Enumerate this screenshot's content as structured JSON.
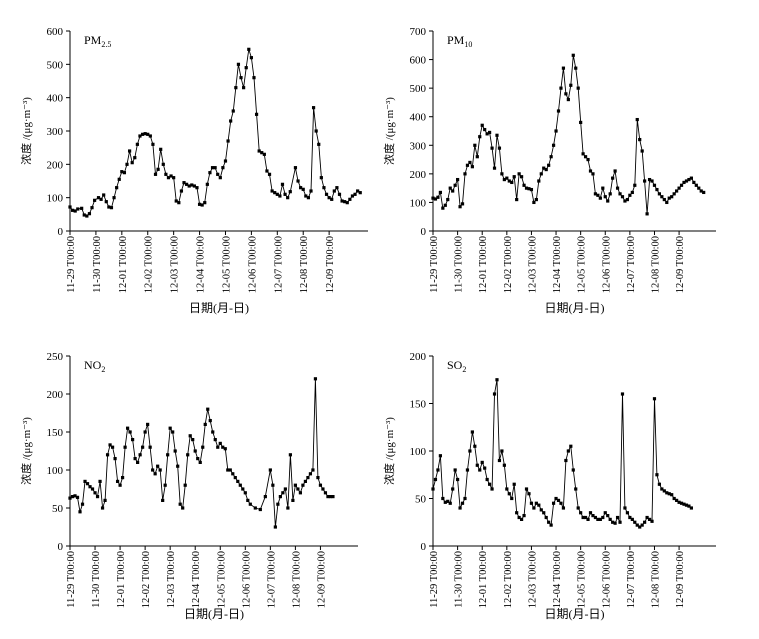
{
  "chart_data": [
    {
      "type": "line",
      "title": "PM2.5",
      "title_main": "PM",
      "title_sub": "2.5",
      "xlabel": "日期(月-日)",
      "ylabel": "浓度 /(μg·m⁻³)",
      "ylim": [
        0,
        600
      ],
      "yticks": [
        "0",
        "100",
        "200",
        "300",
        "400",
        "500",
        "600"
      ],
      "xlim": [
        0,
        11.5
      ],
      "xticks": [
        "11-29 T00:00",
        "11-30 T00:00",
        "12-01 T00:00",
        "12-02 T00:00",
        "12-03 T00:00",
        "12-04 T00:00",
        "12-05 T00:00",
        "12-06 T00:00",
        "12-07 T00:00",
        "12-08 T00:00",
        "12-09 T00:00"
      ],
      "series": [
        {
          "x": [
            0,
            0.1,
            0.2,
            0.3,
            0.45,
            0.55,
            0.65,
            0.75,
            0.85,
            0.95,
            1.1,
            1.2,
            1.3,
            1.4,
            1.5,
            1.6,
            1.7,
            1.8,
            1.9,
            2.0,
            2.1,
            2.2,
            2.3,
            2.4,
            2.5,
            2.6,
            2.7,
            2.8,
            2.9,
            3.0,
            3.1,
            3.2,
            3.3,
            3.4,
            3.5,
            3.6,
            3.7,
            3.8,
            3.9,
            4.0,
            4.1,
            4.2,
            4.3,
            4.4,
            4.5,
            4.6,
            4.7,
            4.8,
            4.9,
            5.0,
            5.1,
            5.2,
            5.3,
            5.4,
            5.5,
            5.6,
            5.7,
            5.8,
            5.9,
            6.0,
            6.1,
            6.2,
            6.3,
            6.4,
            6.5,
            6.6,
            6.7,
            6.8,
            6.9,
            7.0,
            7.1,
            7.2,
            7.3,
            7.4,
            7.5,
            7.6,
            7.7,
            7.8,
            7.9,
            8.0,
            8.1,
            8.2,
            8.3,
            8.4,
            8.5,
            8.7,
            8.8,
            8.9,
            9.0,
            9.1,
            9.2,
            9.3,
            9.4,
            9.5,
            9.6,
            9.7,
            9.8,
            9.9,
            10.0,
            10.1,
            10.2,
            10.3,
            10.4,
            10.5,
            10.6,
            10.7,
            10.8,
            10.9,
            11.0,
            11.1,
            11.2
          ],
          "y": [
            72,
            62,
            60,
            66,
            68,
            48,
            45,
            52,
            70,
            92,
            100,
            95,
            108,
            88,
            72,
            70,
            100,
            130,
            155,
            178,
            175,
            200,
            240,
            205,
            220,
            260,
            285,
            290,
            292,
            290,
            285,
            260,
            170,
            185,
            245,
            200,
            170,
            160,
            165,
            160,
            90,
            85,
            120,
            145,
            140,
            135,
            138,
            135,
            130,
            80,
            78,
            85,
            140,
            175,
            190,
            190,
            170,
            160,
            190,
            210,
            270,
            330,
            360,
            430,
            500,
            460,
            430,
            490,
            545,
            520,
            460,
            350,
            240,
            235,
            230,
            180,
            170,
            120,
            115,
            110,
            105,
            140,
            110,
            100,
            118,
            190,
            150,
            130,
            125,
            105,
            100,
            120,
            370,
            300,
            260,
            160,
            130,
            110,
            100,
            95,
            120,
            130,
            110,
            90,
            88,
            85,
            95,
            105,
            110,
            120,
            115
          ],
          "gaps": [
            7.5
          ]
        }
      ]
    },
    {
      "type": "line",
      "title": "PM10",
      "title_main": "PM",
      "title_sub": "10",
      "xlabel": "日期(月-日)",
      "ylabel": "浓度 /(μg·m⁻³)",
      "ylim": [
        0,
        700
      ],
      "yticks": [
        "0",
        "100",
        "200",
        "300",
        "400",
        "500",
        "600",
        "700"
      ],
      "xlim": [
        0,
        11.5
      ],
      "xticks": [
        "11-29 T00:00",
        "11-30 T00:00",
        "12-01 T00:00",
        "12-02 T00:00",
        "12-03 T00:00",
        "12-04 T00:00",
        "12-05 T00:00",
        "12-06 T00:00",
        "12-07 T00:00",
        "12-08 T00:00",
        "12-09 T00:00"
      ],
      "series": [
        {
          "x": [
            0,
            0.1,
            0.2,
            0.3,
            0.4,
            0.5,
            0.6,
            0.7,
            0.8,
            0.9,
            1.0,
            1.1,
            1.2,
            1.3,
            1.4,
            1.5,
            1.6,
            1.7,
            1.8,
            1.9,
            2.0,
            2.1,
            2.2,
            2.3,
            2.4,
            2.5,
            2.6,
            2.7,
            2.8,
            2.9,
            3.0,
            3.1,
            3.2,
            3.3,
            3.4,
            3.5,
            3.6,
            3.7,
            3.8,
            3.9,
            4.0,
            4.1,
            4.2,
            4.3,
            4.4,
            4.5,
            4.6,
            4.7,
            4.8,
            4.9,
            5.0,
            5.1,
            5.2,
            5.3,
            5.4,
            5.5,
            5.6,
            5.7,
            5.8,
            5.9,
            6.0,
            6.1,
            6.2,
            6.3,
            6.4,
            6.5,
            6.6,
            6.7,
            6.8,
            6.9,
            7.0,
            7.1,
            7.2,
            7.3,
            7.4,
            7.5,
            7.6,
            7.7,
            7.8,
            7.9,
            8.0,
            8.1,
            8.2,
            8.3,
            8.4,
            8.5,
            8.6,
            8.7,
            8.8,
            8.9,
            9.0,
            9.1,
            9.2,
            9.3,
            9.4,
            9.5,
            9.6,
            9.7,
            9.8,
            9.9,
            10.0,
            10.1,
            10.2,
            10.3,
            10.4,
            10.5,
            10.6,
            10.7,
            10.8,
            10.9,
            11.0
          ],
          "y": [
            115,
            112,
            118,
            135,
            80,
            90,
            110,
            150,
            140,
            160,
            180,
            85,
            95,
            200,
            230,
            240,
            225,
            300,
            260,
            330,
            370,
            355,
            340,
            345,
            290,
            220,
            335,
            290,
            200,
            180,
            185,
            175,
            170,
            190,
            110,
            200,
            190,
            160,
            150,
            148,
            145,
            100,
            110,
            175,
            200,
            220,
            215,
            230,
            260,
            300,
            350,
            420,
            500,
            570,
            480,
            460,
            510,
            615,
            570,
            500,
            380,
            270,
            260,
            250,
            210,
            200,
            130,
            125,
            115,
            150,
            120,
            105,
            130,
            185,
            210,
            150,
            130,
            120,
            105,
            110,
            125,
            135,
            160,
            390,
            320,
            280,
            175,
            60,
            180,
            175,
            160,
            145,
            130,
            120,
            110,
            100,
            115,
            120,
            130,
            140,
            150,
            160,
            170,
            175,
            180,
            185,
            170,
            160,
            150,
            140,
            135
          ],
          "gaps": []
        }
      ]
    },
    {
      "type": "line",
      "title": "NO2",
      "title_main": "NO",
      "title_sub": "2",
      "xlabel": "日期(月-日)",
      "ylabel": "浓度 /(μg·m⁻³)",
      "ylim": [
        0,
        250
      ],
      "yticks": [
        "0",
        "50",
        "100",
        "150",
        "200",
        "250"
      ],
      "xlim": [
        0,
        11.5
      ],
      "xticks": [
        "11-29 T00:00",
        "11-30 T00:00",
        "12-01 T00:00",
        "12-02 T00:00",
        "12-03 T00:00",
        "12-04 T00:00",
        "12-05 T00:00",
        "12-06 T00:00",
        "12-07 T00:00",
        "12-08 T00:00",
        "12-09 T00:00"
      ],
      "series": [
        {
          "x": [
            0,
            0.1,
            0.2,
            0.3,
            0.4,
            0.5,
            0.6,
            0.7,
            0.8,
            0.9,
            1.0,
            1.1,
            1.2,
            1.3,
            1.4,
            1.5,
            1.6,
            1.7,
            1.8,
            1.9,
            2.0,
            2.1,
            2.2,
            2.3,
            2.4,
            2.5,
            2.6,
            2.7,
            2.8,
            2.9,
            3.0,
            3.1,
            3.2,
            3.3,
            3.4,
            3.5,
            3.6,
            3.7,
            3.8,
            3.9,
            4.0,
            4.1,
            4.2,
            4.3,
            4.4,
            4.5,
            4.6,
            4.7,
            4.8,
            4.9,
            5.0,
            5.1,
            5.2,
            5.3,
            5.4,
            5.5,
            5.6,
            5.7,
            5.8,
            5.9,
            6.0,
            6.1,
            6.2,
            6.3,
            6.4,
            6.5,
            6.6,
            6.7,
            6.8,
            6.9,
            7.0,
            7.1,
            7.2,
            7.4,
            7.6,
            7.8,
            8.0,
            8.1,
            8.2,
            8.3,
            8.4,
            8.5,
            8.6,
            8.7,
            8.8,
            8.9,
            9.0,
            9.1,
            9.2,
            9.3,
            9.4,
            9.5,
            9.6,
            9.7,
            9.8,
            9.9,
            10.0,
            10.1,
            10.2,
            10.3,
            10.4,
            10.5
          ],
          "y": [
            63,
            65,
            66,
            64,
            45,
            55,
            85,
            82,
            78,
            75,
            70,
            65,
            85,
            50,
            60,
            120,
            133,
            130,
            115,
            85,
            80,
            90,
            130,
            155,
            150,
            140,
            115,
            110,
            120,
            130,
            150,
            160,
            130,
            100,
            95,
            105,
            100,
            60,
            80,
            120,
            155,
            150,
            125,
            105,
            55,
            50,
            80,
            120,
            145,
            140,
            125,
            115,
            110,
            130,
            160,
            180,
            165,
            150,
            140,
            130,
            135,
            130,
            128,
            100,
            100,
            95,
            90,
            85,
            80,
            75,
            70,
            60,
            55,
            50,
            48,
            65,
            100,
            80,
            25,
            55,
            65,
            70,
            75,
            50,
            120,
            60,
            80,
            75,
            70,
            80,
            85,
            90,
            95,
            100,
            220,
            90,
            80,
            75,
            70,
            65,
            65,
            65
          ],
          "gaps": []
        }
      ]
    },
    {
      "type": "line",
      "title": "SO2",
      "title_main": "SO",
      "title_sub": "2",
      "xlabel": "日期(月-日)",
      "ylabel": "浓度 /(μg·m⁻³)",
      "ylim": [
        0,
        200
      ],
      "yticks": [
        "0",
        "50",
        "100",
        "150",
        "200"
      ],
      "xlim": [
        0,
        11.5
      ],
      "xticks": [
        "11-29 T00:00",
        "11-30 T00:00",
        "12-01 T00:00",
        "12-02 T00:00",
        "12-03 T00:00",
        "12-04 T00:00",
        "12-05 T00:00",
        "12-06 T00:00",
        "12-07 T00:00",
        "12-08 T00:00",
        "12-09 T00:00"
      ],
      "series": [
        {
          "x": [
            0,
            0.1,
            0.2,
            0.3,
            0.4,
            0.5,
            0.6,
            0.7,
            0.8,
            0.9,
            1.0,
            1.1,
            1.2,
            1.3,
            1.4,
            1.5,
            1.6,
            1.7,
            1.8,
            1.9,
            2.0,
            2.1,
            2.2,
            2.3,
            2.4,
            2.5,
            2.6,
            2.7,
            2.8,
            2.9,
            3.0,
            3.1,
            3.2,
            3.3,
            3.4,
            3.5,
            3.6,
            3.7,
            3.8,
            3.9,
            4.0,
            4.1,
            4.2,
            4.3,
            4.4,
            4.5,
            4.6,
            4.7,
            4.8,
            4.9,
            5.0,
            5.1,
            5.2,
            5.3,
            5.4,
            5.5,
            5.6,
            5.7,
            5.8,
            5.9,
            6.0,
            6.1,
            6.2,
            6.3,
            6.4,
            6.5,
            6.6,
            6.7,
            6.8,
            6.9,
            7.0,
            7.1,
            7.2,
            7.3,
            7.4,
            7.5,
            7.6,
            7.7,
            7.8,
            7.9,
            8.0,
            8.1,
            8.2,
            8.3,
            8.4,
            8.5,
            8.6,
            8.7,
            8.8,
            8.9,
            9.0,
            9.1,
            9.2,
            9.3,
            9.4,
            9.5,
            9.6,
            9.7,
            9.8,
            9.9,
            10.0,
            10.1,
            10.2,
            10.3,
            10.4,
            10.5
          ],
          "y": [
            60,
            70,
            80,
            95,
            50,
            46,
            47,
            45,
            60,
            80,
            70,
            40,
            45,
            50,
            80,
            100,
            120,
            105,
            85,
            80,
            88,
            82,
            70,
            65,
            60,
            160,
            175,
            90,
            100,
            85,
            60,
            55,
            50,
            65,
            35,
            30,
            28,
            32,
            60,
            55,
            45,
            40,
            45,
            43,
            38,
            35,
            30,
            25,
            22,
            45,
            50,
            48,
            45,
            40,
            90,
            100,
            105,
            80,
            60,
            40,
            35,
            30,
            30,
            28,
            35,
            32,
            30,
            28,
            28,
            30,
            35,
            32,
            28,
            25,
            24,
            30,
            25,
            160,
            40,
            35,
            30,
            28,
            25,
            22,
            20,
            22,
            25,
            30,
            28,
            26,
            155,
            75,
            65,
            60,
            58,
            56,
            55,
            54,
            50,
            48,
            46,
            45,
            44,
            43,
            42,
            40
          ],
          "gaps": []
        }
      ]
    }
  ]
}
